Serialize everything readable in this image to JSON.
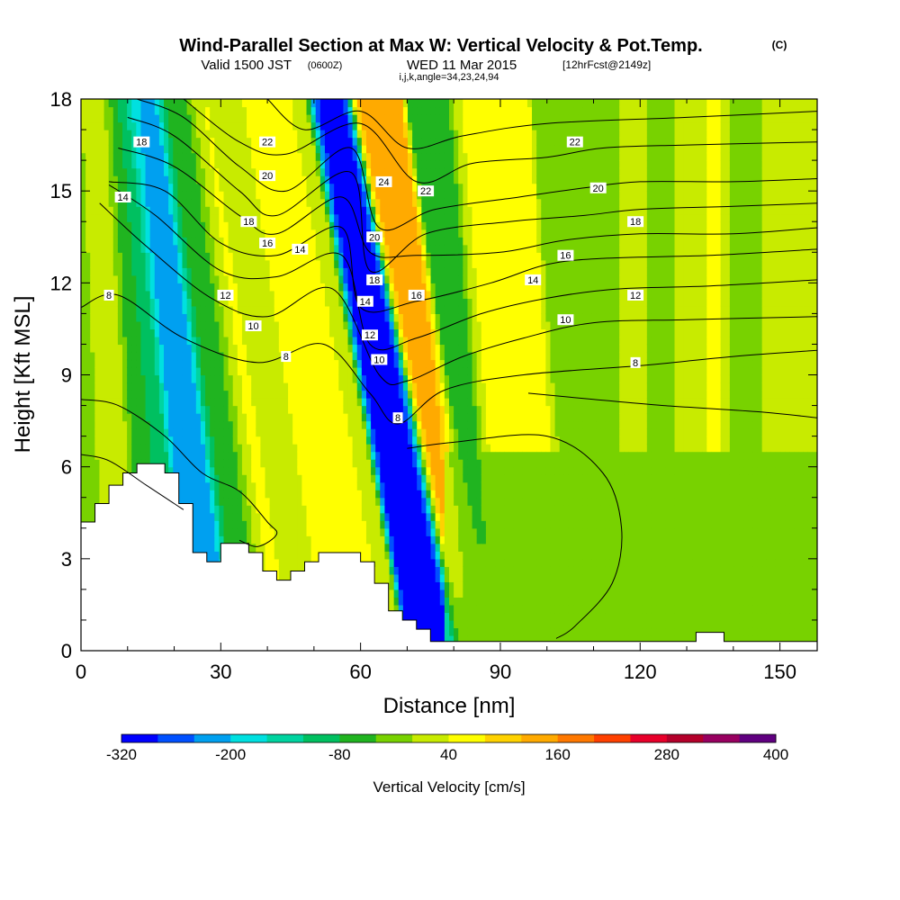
{
  "header": {
    "title": "Wind-Parallel Section at Max W: Vertical Velocity & Pot.Temp.",
    "copyright": "(C)",
    "valid_prefix": "Valid 1500 JST",
    "valid_utc": "(0600Z)",
    "valid_date": "WED 11 Mar 2015",
    "forecast": "[12hrFcst@2149z]",
    "indices": "i,j,k,angle=34,23,24,94"
  },
  "colors": {
    "palette": [
      "#0000ff",
      "#0050ff",
      "#00a0f0",
      "#00e0e0",
      "#00d4a0",
      "#00c060",
      "#20b420",
      "#78d200",
      "#c8eb00",
      "#ffff00",
      "#ffd200",
      "#ffaa00",
      "#ff7800",
      "#ff4000",
      "#e8002a",
      "#b4002a",
      "#980060",
      "#600080"
    ],
    "terrain": "#ffffff",
    "contour": "#000000"
  },
  "chart_data": {
    "type": "heatmap",
    "xlabel": "Distance [nm]",
    "ylabel": "Height [Kft MSL]",
    "xlim": [
      0,
      158
    ],
    "ylim": [
      0,
      18
    ],
    "xticks": [
      "0",
      "30",
      "60",
      "90",
      "120",
      "150"
    ],
    "yticks": [
      "0",
      "3",
      "6",
      "9",
      "12",
      "15",
      "18"
    ],
    "colorbar": {
      "label": "Vertical Velocity [cm/s]",
      "min": -320,
      "max": 400,
      "step": 40,
      "tick_labels": [
        "-320",
        "-200",
        "-80",
        "40",
        "160",
        "280",
        "400"
      ]
    },
    "velocity_field": {
      "background": 20,
      "columns": [
        {
          "x": 0,
          "value": -20,
          "tilt": -0.3
        },
        {
          "x": 6,
          "value": 30,
          "tilt": -0.3
        },
        {
          "x": 13,
          "value": -80,
          "tilt": -0.5
        },
        {
          "x": 21,
          "value": -230,
          "tilt": -0.9
        },
        {
          "x": 29,
          "value": -60,
          "tilt": -0.9
        },
        {
          "x": 35,
          "value": 50,
          "tilt": -0.9
        },
        {
          "x": 40,
          "value": 0,
          "tilt": -1.0
        },
        {
          "x": 47,
          "value": 70,
          "tilt": -1.0
        },
        {
          "x": 54,
          "value": 40,
          "tilt": -1.0
        },
        {
          "x": 65,
          "value": -300,
          "tilt": -1.3
        },
        {
          "x": 74,
          "value": 140,
          "tilt": -1.3
        },
        {
          "x": 81,
          "value": -80,
          "tilt": -0.5
        },
        {
          "x": 88,
          "value": 50,
          "tilt": -0.6
        },
        {
          "x": 96,
          "value": 60,
          "tilt": -0.9
        },
        {
          "x": 105,
          "value": -20,
          "tilt": 0
        },
        {
          "x": 113,
          "value": -30,
          "tilt": 0
        },
        {
          "x": 118,
          "value": 40,
          "tilt": 0
        },
        {
          "x": 124,
          "value": -40,
          "tilt": 0
        },
        {
          "x": 130,
          "value": 20,
          "tilt": 0
        },
        {
          "x": 136,
          "value": 45,
          "tilt": 0
        },
        {
          "x": 142,
          "value": -20,
          "tilt": 0
        },
        {
          "x": 150,
          "value": 10,
          "tilt": 0
        },
        {
          "x": 158,
          "value": 20,
          "tilt": 0
        }
      ],
      "lower_region": {
        "value": -40,
        "below_height": 6.5,
        "from_x": 78
      }
    },
    "terrain_profile": [
      [
        0,
        4.2
      ],
      [
        3,
        4.2
      ],
      [
        3,
        4.8
      ],
      [
        6,
        4.8
      ],
      [
        6,
        5.4
      ],
      [
        9,
        5.4
      ],
      [
        9,
        5.8
      ],
      [
        12,
        5.8
      ],
      [
        12,
        6.1
      ],
      [
        18,
        6.1
      ],
      [
        18,
        5.8
      ],
      [
        21,
        5.8
      ],
      [
        21,
        4.8
      ],
      [
        24,
        4.8
      ],
      [
        24,
        3.2
      ],
      [
        27,
        3.2
      ],
      [
        27,
        2.9
      ],
      [
        30,
        2.9
      ],
      [
        30,
        3.5
      ],
      [
        36,
        3.5
      ],
      [
        36,
        3.2
      ],
      [
        39,
        3.2
      ],
      [
        39,
        2.6
      ],
      [
        42,
        2.6
      ],
      [
        42,
        2.3
      ],
      [
        45,
        2.3
      ],
      [
        45,
        2.6
      ],
      [
        48,
        2.6
      ],
      [
        48,
        2.9
      ],
      [
        51,
        2.9
      ],
      [
        51,
        3.2
      ],
      [
        60,
        3.2
      ],
      [
        60,
        2.9
      ],
      [
        63,
        2.9
      ],
      [
        63,
        2.2
      ],
      [
        66,
        2.2
      ],
      [
        66,
        1.3
      ],
      [
        69,
        1.3
      ],
      [
        69,
        1.0
      ],
      [
        72,
        1.0
      ],
      [
        72,
        0.7
      ],
      [
        75,
        0.7
      ],
      [
        75,
        0.3
      ],
      [
        132,
        0.3
      ],
      [
        132,
        0.6
      ],
      [
        138,
        0.6
      ],
      [
        138,
        0.3
      ],
      [
        158,
        0.3
      ]
    ],
    "theta_contours": [
      {
        "label": "8",
        "points": [
          [
            0,
            11.2
          ],
          [
            8,
            11.6
          ],
          [
            22,
            10.2
          ],
          [
            38,
            9.4
          ],
          [
            52,
            10.0
          ],
          [
            62,
            8.4
          ],
          [
            68,
            7.4
          ],
          [
            78,
            8.5
          ],
          [
            95,
            9.0
          ],
          [
            120,
            9.3
          ],
          [
            140,
            9.6
          ],
          [
            158,
            9.8
          ]
        ],
        "labels": [
          [
            6,
            11.6
          ],
          [
            44,
            9.6
          ],
          [
            68,
            7.6
          ],
          [
            119,
            9.4
          ]
        ]
      },
      {
        "label": "10",
        "points": [
          [
            4,
            14.6
          ],
          [
            14,
            13.2
          ],
          [
            28,
            11.5
          ],
          [
            40,
            10.9
          ],
          [
            54,
            11.8
          ],
          [
            64,
            9.0
          ],
          [
            70,
            8.8
          ],
          [
            82,
            9.6
          ],
          [
            95,
            10.2
          ],
          [
            110,
            10.7
          ],
          [
            130,
            10.8
          ],
          [
            158,
            10.9
          ]
        ],
        "labels": [
          [
            37,
            10.6
          ],
          [
            64,
            9.5
          ],
          [
            104,
            10.8
          ]
        ]
      },
      {
        "label": "12",
        "points": [
          [
            6,
            15.2
          ],
          [
            16,
            14.2
          ],
          [
            30,
            12.4
          ],
          [
            42,
            12.2
          ],
          [
            56,
            12.9
          ],
          [
            62,
            10.0
          ],
          [
            72,
            10.2
          ],
          [
            86,
            11.0
          ],
          [
            100,
            11.5
          ],
          [
            115,
            11.8
          ],
          [
            135,
            11.9
          ],
          [
            158,
            12.1
          ]
        ],
        "labels": [
          [
            31,
            11.6
          ],
          [
            62,
            10.3
          ],
          [
            119,
            11.6
          ]
        ]
      },
      {
        "label": "14",
        "points": [
          [
            6,
            15.3
          ],
          [
            18,
            15.0
          ],
          [
            30,
            13.3
          ],
          [
            42,
            12.9
          ],
          [
            56,
            13.8
          ],
          [
            60,
            11.2
          ],
          [
            72,
            11.4
          ],
          [
            88,
            12.0
          ],
          [
            100,
            12.6
          ],
          [
            112,
            12.8
          ],
          [
            135,
            12.9
          ],
          [
            158,
            13.1
          ]
        ],
        "labels": [
          [
            9,
            14.8
          ],
          [
            47,
            13.1
          ],
          [
            61,
            11.4
          ],
          [
            97,
            12.1
          ]
        ]
      },
      {
        "label": "16",
        "points": [
          [
            8,
            16.4
          ],
          [
            20,
            15.8
          ],
          [
            34,
            14.2
          ],
          [
            42,
            13.6
          ],
          [
            56,
            14.8
          ],
          [
            62,
            13.0
          ],
          [
            72,
            12.9
          ],
          [
            90,
            13.0
          ],
          [
            104,
            13.4
          ],
          [
            120,
            13.6
          ],
          [
            140,
            13.6
          ],
          [
            158,
            13.8
          ]
        ],
        "labels": [
          [
            40,
            13.3
          ],
          [
            72,
            11.6
          ],
          [
            104,
            12.9
          ]
        ]
      },
      {
        "label": "18",
        "points": [
          [
            10,
            17.4
          ],
          [
            20,
            16.8
          ],
          [
            34,
            15.0
          ],
          [
            42,
            14.2
          ],
          [
            58,
            15.6
          ],
          [
            62,
            12.4
          ],
          [
            74,
            13.6
          ],
          [
            92,
            14.0
          ],
          [
            108,
            14.2
          ],
          [
            120,
            14.4
          ],
          [
            140,
            14.5
          ],
          [
            158,
            14.6
          ]
        ],
        "labels": [
          [
            13,
            16.6
          ],
          [
            36,
            14.0
          ],
          [
            63,
            12.1
          ],
          [
            119,
            14.0
          ]
        ]
      },
      {
        "label": "20",
        "points": [
          [
            12,
            18.0
          ],
          [
            22,
            17.4
          ],
          [
            34,
            15.8
          ],
          [
            44,
            15.0
          ],
          [
            58,
            16.4
          ],
          [
            64,
            13.8
          ],
          [
            76,
            14.4
          ],
          [
            94,
            14.8
          ],
          [
            108,
            15.1
          ],
          [
            120,
            15.3
          ],
          [
            140,
            15.3
          ],
          [
            158,
            15.4
          ]
        ],
        "labels": [
          [
            40,
            15.5
          ],
          [
            63,
            13.5
          ],
          [
            111,
            15.1
          ]
        ]
      },
      {
        "label": "22",
        "points": [
          [
            22,
            18.0
          ],
          [
            34,
            16.6
          ],
          [
            44,
            16.2
          ],
          [
            60,
            17.2
          ],
          [
            72,
            15.3
          ],
          [
            84,
            15.9
          ],
          [
            100,
            16.1
          ],
          [
            112,
            16.4
          ],
          [
            130,
            16.5
          ],
          [
            158,
            16.6
          ]
        ],
        "labels": [
          [
            40,
            16.6
          ],
          [
            74,
            15.0
          ],
          [
            106,
            16.6
          ]
        ]
      },
      {
        "label": "24",
        "points": [
          [
            40,
            18.0
          ],
          [
            48,
            17.0
          ],
          [
            60,
            17.6
          ],
          [
            70,
            16.4
          ],
          [
            82,
            16.8
          ],
          [
            100,
            17.2
          ],
          [
            130,
            17.4
          ],
          [
            158,
            17.6
          ]
        ],
        "labels": [
          [
            65,
            15.3
          ]
        ]
      }
    ],
    "low_contours": [
      {
        "points": [
          [
            0,
            8.2
          ],
          [
            8,
            8.0
          ],
          [
            18,
            7.0
          ],
          [
            26,
            5.8
          ],
          [
            34,
            5.2
          ],
          [
            40,
            4.2
          ],
          [
            42,
            3.8
          ],
          [
            38,
            3.4
          ],
          [
            34,
            3.6
          ]
        ]
      },
      {
        "points": [
          [
            0,
            6.4
          ],
          [
            6,
            6.2
          ],
          [
            14,
            5.4
          ],
          [
            18,
            5.0
          ],
          [
            20,
            4.8
          ],
          [
            22,
            4.6
          ]
        ]
      },
      {
        "points": [
          [
            70,
            6.6
          ],
          [
            80,
            6.8
          ],
          [
            100,
            7.0
          ],
          [
            112,
            5.8
          ],
          [
            116,
            4.0
          ],
          [
            114,
            2.2
          ],
          [
            106,
            0.8
          ],
          [
            102,
            0.4
          ]
        ]
      },
      {
        "points": [
          [
            96,
            8.4
          ],
          [
            110,
            8.2
          ],
          [
            125,
            8.0
          ],
          [
            145,
            7.8
          ],
          [
            158,
            7.6
          ]
        ]
      }
    ]
  }
}
